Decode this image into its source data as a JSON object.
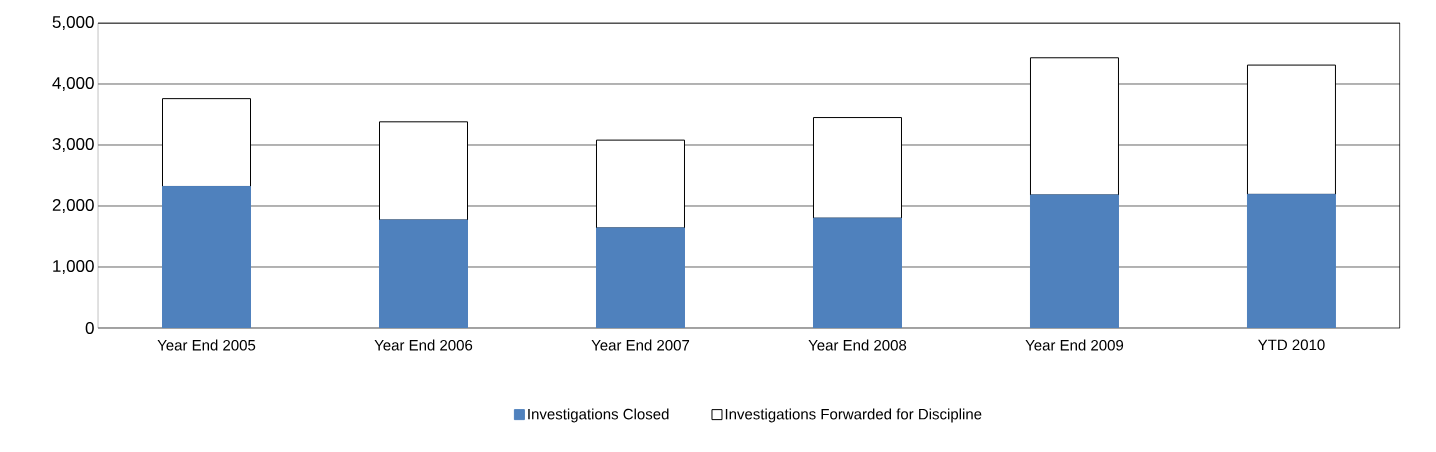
{
  "chart_data": {
    "type": "bar",
    "stacked": true,
    "categories": [
      "Year End 2005",
      "Year End 2006",
      "Year End 2007",
      "Year End 2008",
      "Year End 2009",
      "YTD 2010"
    ],
    "series": [
      {
        "name": "Investigations Closed",
        "color": "#4f81bd",
        "values": [
          2320,
          1770,
          1640,
          1800,
          2180,
          2190
        ]
      },
      {
        "name": "Investigations Forwarded for Discipline",
        "color": "#ffffff",
        "values": [
          1440,
          1610,
          1440,
          1650,
          2250,
          2120
        ]
      }
    ],
    "ylim": [
      0,
      5000
    ],
    "yticks": [
      {
        "value": 0,
        "label": "0"
      },
      {
        "value": 1000,
        "label": "1,000"
      },
      {
        "value": 2000,
        "label": "2,000"
      },
      {
        "value": 3000,
        "label": "3,000"
      },
      {
        "value": 4000,
        "label": "4,000"
      },
      {
        "value": 5000,
        "label": "5,000"
      }
    ],
    "grid": "y",
    "legend": "bottom"
  }
}
